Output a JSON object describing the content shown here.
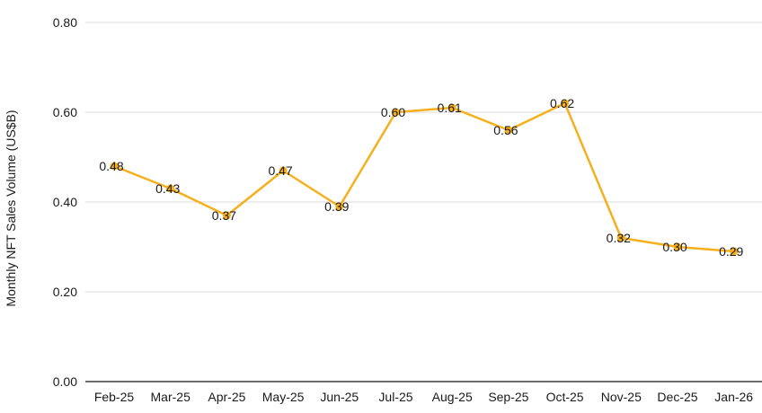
{
  "chart_data": {
    "type": "line",
    "title": "",
    "xlabel": "",
    "ylabel": "Monthly NFT Sales Volume (US$B)",
    "categories": [
      "Feb-25",
      "Mar-25",
      "Apr-25",
      "May-25",
      "Jun-25",
      "Jul-25",
      "Aug-25",
      "Sep-25",
      "Oct-25",
      "Nov-25",
      "Dec-25",
      "Jan-26"
    ],
    "values": [
      0.48,
      0.43,
      0.37,
      0.47,
      0.39,
      0.6,
      0.61,
      0.56,
      0.62,
      0.32,
      0.3,
      0.29
    ],
    "data_labels": [
      "0.48",
      "0.43",
      "0.37",
      "0.47",
      "0.39",
      "0.60",
      "0.61",
      "0.56",
      "0.62",
      "0.32",
      "0.30",
      "0.29"
    ],
    "ylim": [
      0,
      0.8
    ],
    "ytick_labels": [
      "0.00",
      "0.20",
      "0.40",
      "0.60",
      "0.80"
    ],
    "ytick_values": [
      0,
      0.2,
      0.4,
      0.6,
      0.8
    ],
    "grid": true,
    "legend_position": "none",
    "colors": {
      "series": "#F5B01B",
      "marker": "#F5B01B",
      "gridline": "#DADADA",
      "axis_line": "#3C3C3C",
      "text": "#1A1A1A",
      "background": "#FFFFFF"
    }
  }
}
